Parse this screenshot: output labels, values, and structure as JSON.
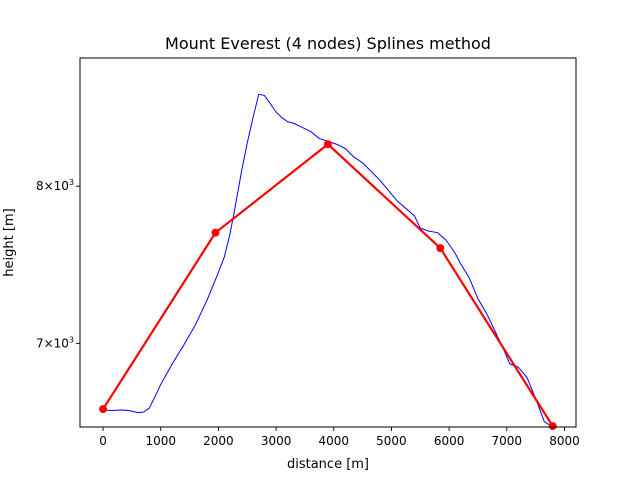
{
  "chart_data": {
    "type": "line",
    "title": "Mount Everest (4 nodes) Splines method",
    "xlabel": "distance [m]",
    "ylabel": "height [m]",
    "xlim": [
      -400,
      8200
    ],
    "ylim": [
      6520,
      8920
    ],
    "y_scale": "log",
    "grid": false,
    "legend": "none",
    "x_ticks": [
      {
        "value": 0,
        "label": "0"
      },
      {
        "value": 1000,
        "label": "1000"
      },
      {
        "value": 2000,
        "label": "2000"
      },
      {
        "value": 3000,
        "label": "3000"
      },
      {
        "value": 4000,
        "label": "4000"
      },
      {
        "value": 5000,
        "label": "5000"
      },
      {
        "value": 6000,
        "label": "6000"
      },
      {
        "value": 7000,
        "label": "7000"
      },
      {
        "value": 8000,
        "label": "8000"
      }
    ],
    "y_ticks": [
      {
        "value": 7000,
        "base": "7",
        "exp": "3"
      },
      {
        "value": 8000,
        "base": "8",
        "exp": "3"
      }
    ],
    "colors": {
      "profile": "#0000ff",
      "spline": "#ff0000",
      "nodes": "#ff0000"
    },
    "series": [
      {
        "style": "line",
        "color": "#0000ff",
        "x": [
          0,
          150,
          300,
          450,
          600,
          700,
          800,
          900,
          1000,
          1200,
          1400,
          1600,
          1800,
          1950,
          2100,
          2200,
          2300,
          2400,
          2500,
          2600,
          2700,
          2800,
          2900,
          3000,
          3100,
          3200,
          3300,
          3450,
          3600,
          3750,
          3900,
          4050,
          4200,
          4350,
          4500,
          4650,
          4800,
          4950,
          5100,
          5250,
          5400,
          5500,
          5650,
          5800,
          5950,
          6100,
          6200,
          6350,
          6500,
          6650,
          6800,
          6950,
          7050,
          7200,
          7350,
          7500,
          7650,
          7800
        ],
        "y": [
          6615,
          6612,
          6615,
          6612,
          6600,
          6603,
          6625,
          6690,
          6760,
          6880,
          6990,
          7110,
          7260,
          7390,
          7530,
          7680,
          7880,
          8100,
          8300,
          8480,
          8650,
          8640,
          8580,
          8520,
          8480,
          8450,
          8440,
          8410,
          8380,
          8330,
          8310,
          8290,
          8260,
          8200,
          8160,
          8100,
          8040,
          7970,
          7900,
          7850,
          7800,
          7720,
          7700,
          7690,
          7640,
          7560,
          7490,
          7400,
          7270,
          7180,
          7070,
          6960,
          6880,
          6860,
          6800,
          6680,
          6550,
          6520
        ]
      },
      {
        "style": "line",
        "color": "#ff0000",
        "x": [
          0,
          1949,
          3898,
          5847,
          7796
        ],
        "y": [
          6620,
          7690,
          8290,
          7590,
          6525
        ]
      },
      {
        "style": "points",
        "color": "#ff0000",
        "x": [
          0,
          1949,
          3898,
          5847,
          7796
        ],
        "y": [
          6620,
          7690,
          8290,
          7590,
          6525
        ]
      }
    ]
  }
}
